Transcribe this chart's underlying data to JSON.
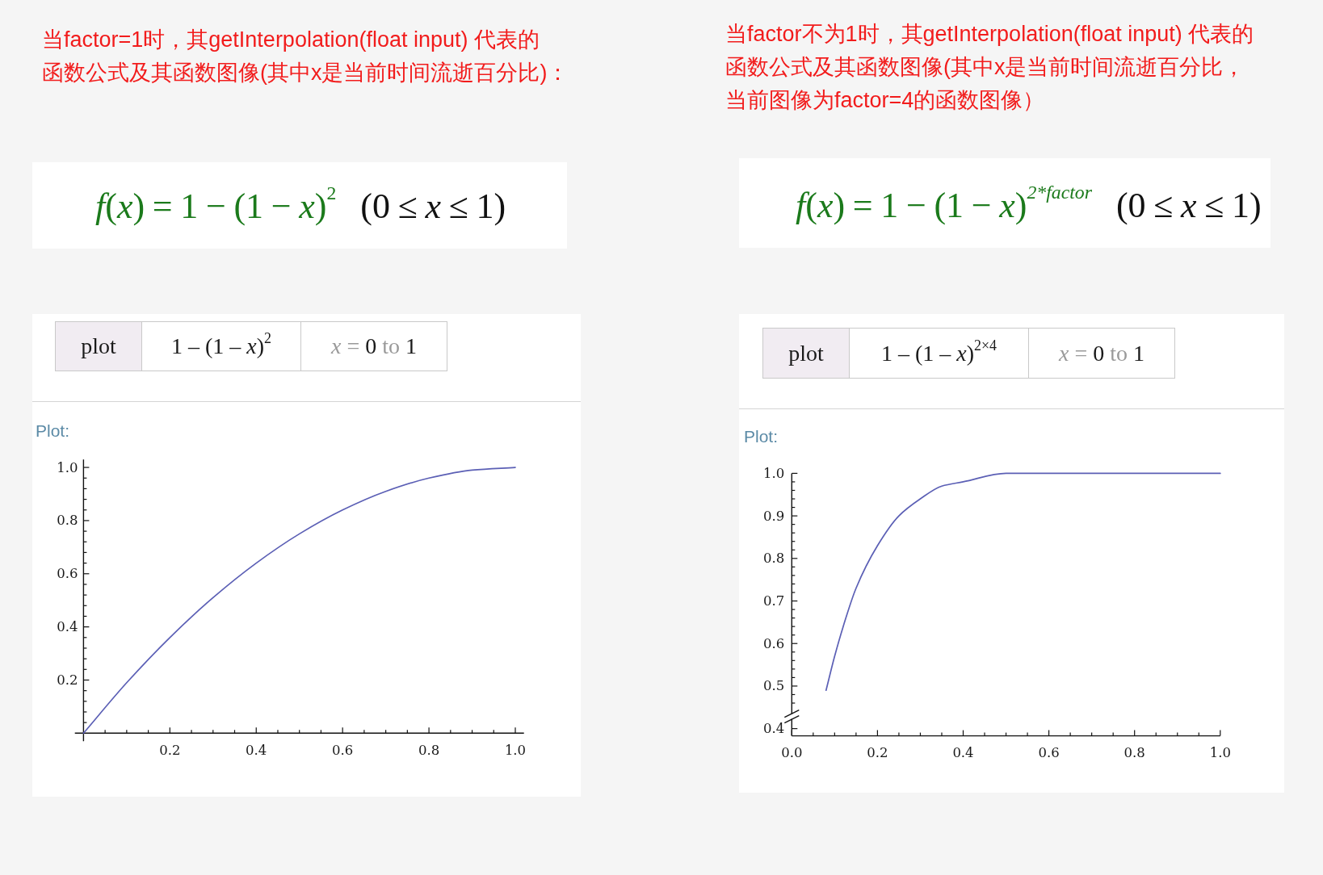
{
  "chart_data": [
    {
      "type": "line",
      "title": "当factor=1时，其getInterpolation(float input) 代表的函数公式及其函数图像(其中x是当前时间流逝百分比)：",
      "annotations": [
        "f(x)=1−(1−x)$^{2}$",
        "(0≤x≤1)",
        "plot",
        "1 – (1 – x)$^{2}$",
        "x = 0 to 1",
        "Plot:"
      ],
      "x": [
        0,
        0.1,
        0.2,
        0.3,
        0.4,
        0.5,
        0.6,
        0.7,
        0.8,
        0.9,
        1
      ],
      "values": [
        0,
        0.19,
        0.36,
        0.51,
        0.64,
        0.75,
        0.84,
        0.91,
        0.96,
        0.99,
        1.0
      ],
      "color": "#5b5fb5",
      "xlim": [
        -0.02,
        1.02
      ],
      "ylim": [
        -0.03,
        1.03
      ],
      "xticks": [
        {
          "value": 0.05,
          "label": null
        },
        {
          "value": 0.1,
          "label": null
        },
        {
          "value": 0.15,
          "label": null
        },
        0.2,
        {
          "value": 0.25,
          "label": null
        },
        {
          "value": 0.3,
          "label": null
        },
        {
          "value": 0.35,
          "label": null
        },
        0.4,
        {
          "value": 0.45,
          "label": null
        },
        {
          "value": 0.5,
          "label": null
        },
        {
          "value": 0.55,
          "label": null
        },
        0.6,
        {
          "value": 0.65,
          "label": null
        },
        {
          "value": 0.7,
          "label": null
        },
        {
          "value": 0.75,
          "label": null
        },
        0.8,
        {
          "value": 0.85,
          "label": null
        },
        {
          "value": 0.9,
          "label": null
        },
        {
          "value": 0.95,
          "label": null
        },
        {
          "value": 1,
          "label": "1.0"
        }
      ],
      "yticks": [
        {
          "value": 0.04,
          "label": null
        },
        {
          "value": 0.08,
          "label": null
        },
        {
          "value": 0.12,
          "label": null
        },
        {
          "value": 0.16,
          "label": null
        },
        0.2,
        {
          "value": 0.24,
          "label": null
        },
        {
          "value": 0.28,
          "label": null
        },
        {
          "value": 0.32,
          "label": null
        },
        {
          "value": 0.36,
          "label": null
        },
        0.4,
        {
          "value": 0.44,
          "label": null
        },
        {
          "value": 0.48,
          "label": null
        },
        {
          "value": 0.52,
          "label": null
        },
        {
          "value": 0.56,
          "label": null
        },
        0.6,
        {
          "value": 0.64,
          "label": null
        },
        {
          "value": 0.68,
          "label": null
        },
        {
          "value": 0.72,
          "label": null
        },
        {
          "value": 0.76,
          "label": null
        },
        0.8,
        {
          "value": 0.84,
          "label": null
        },
        {
          "value": 0.88,
          "label": null
        },
        {
          "value": 0.92,
          "label": null
        },
        {
          "value": 0.96,
          "label": null
        },
        {
          "value": 1,
          "label": "1.0"
        }
      ]
    },
    {
      "type": "line",
      "title": "当factor不为1时，其getInterpolation(float input) 代表的函数公式及其函数图像(其中x是当前时间流逝百分比，当前图像为factor=4的函数图像）",
      "annotations": [
        "f(x)=1−(1−x)$^{2*factor}$",
        "(0≤x≤1)",
        "plot",
        "1 – (1 – x)$^{2×4}$",
        "x = 0 to 1",
        "Plot:"
      ],
      "x": [
        0.08,
        0.1,
        0.12,
        0.15,
        0.2,
        0.25,
        0.3,
        0.35,
        0.4,
        0.5,
        0.6,
        0.7,
        0.8,
        0.9,
        1
      ],
      "values": [
        0.49,
        0.57,
        0.64,
        0.73,
        0.83,
        0.9,
        0.94,
        0.97,
        0.98,
        1.0,
        1.0,
        1.0,
        1.0,
        1.0,
        1.0
      ],
      "color": "#5b5fb5",
      "xlim": [
        0,
        1
      ],
      "ylim": [
        0.383,
        1
      ],
      "xticks": [
        {
          "value": 0,
          "label": "0.0"
        },
        {
          "value": 0.05,
          "label": null
        },
        {
          "value": 0.1,
          "label": null
        },
        {
          "value": 0.15,
          "label": null
        },
        0.2,
        {
          "value": 0.25,
          "label": null
        },
        {
          "value": 0.3,
          "label": null
        },
        {
          "value": 0.35,
          "label": null
        },
        0.4,
        {
          "value": 0.45,
          "label": null
        },
        {
          "value": 0.5,
          "label": null
        },
        {
          "value": 0.55,
          "label": null
        },
        0.6,
        {
          "value": 0.65,
          "label": null
        },
        {
          "value": 0.7,
          "label": null
        },
        {
          "value": 0.75,
          "label": null
        },
        0.8,
        {
          "value": 0.85,
          "label": null
        },
        {
          "value": 0.9,
          "label": null
        },
        {
          "value": 0.95,
          "label": null
        },
        {
          "value": 1,
          "label": "1.0"
        }
      ],
      "yticks": [
        0.4,
        {
          "value": 0.46,
          "label": null
        },
        {
          "value": 0.48,
          "label": null
        },
        0.5,
        {
          "value": 0.52,
          "label": null
        },
        {
          "value": 0.54,
          "label": null
        },
        {
          "value": 0.56,
          "label": null
        },
        {
          "value": 0.58,
          "label": null
        },
        0.6,
        {
          "value": 0.62,
          "label": null
        },
        {
          "value": 0.64,
          "label": null
        },
        {
          "value": 0.66,
          "label": null
        },
        {
          "value": 0.68,
          "label": null
        },
        0.7,
        {
          "value": 0.72,
          "label": null
        },
        {
          "value": 0.74,
          "label": null
        },
        {
          "value": 0.76,
          "label": null
        },
        {
          "value": 0.78,
          "label": null
        },
        0.8,
        {
          "value": 0.82,
          "label": null
        },
        {
          "value": 0.84,
          "label": null
        },
        {
          "value": 0.86,
          "label": null
        },
        {
          "value": 0.88,
          "label": null
        },
        0.9,
        {
          "value": 0.92,
          "label": null
        },
        {
          "value": 0.94,
          "label": null
        },
        {
          "value": 0.96,
          "label": null
        },
        {
          "value": 0.98,
          "label": null
        },
        {
          "value": 1,
          "label": "1.0"
        }
      ]
    }
  ]
}
